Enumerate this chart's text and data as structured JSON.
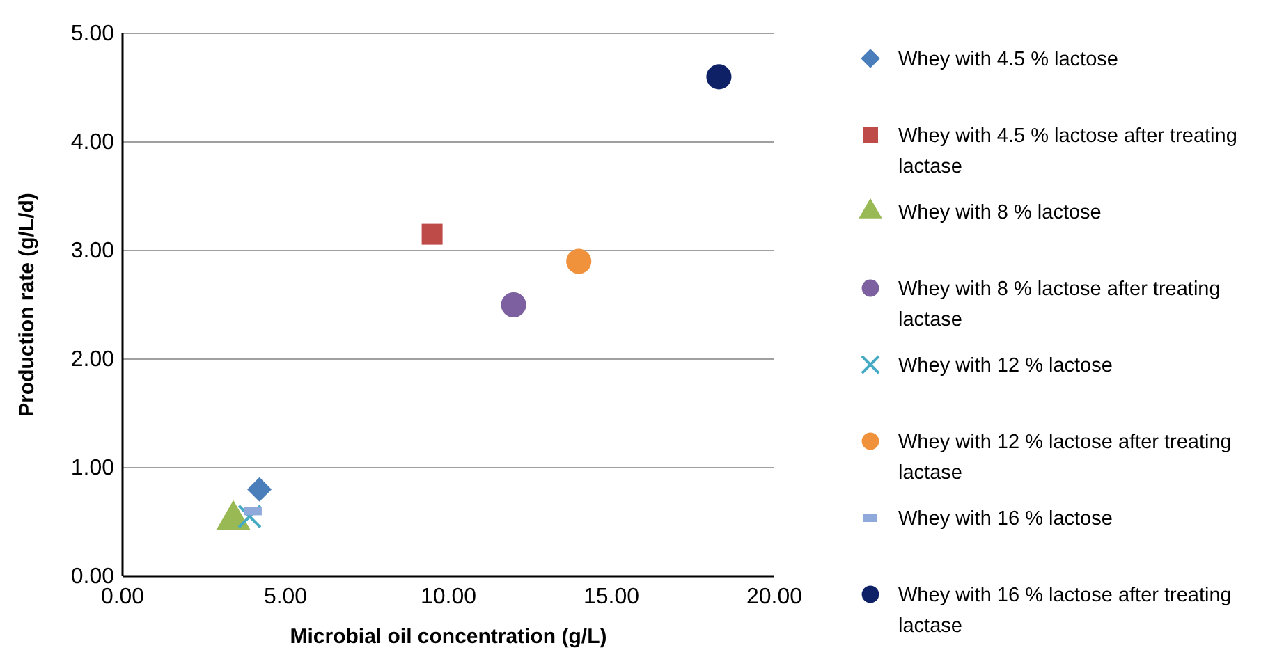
{
  "chart_data": {
    "type": "scatter",
    "xlabel": "Microbial oil concentration (g/L)",
    "ylabel": "Production rate (g/L/d)",
    "xlim": [
      0,
      20
    ],
    "xticks": [
      {
        "value": 0,
        "label": "0.00"
      },
      {
        "value": 5,
        "label": "5.00"
      },
      {
        "value": 10,
        "label": "10.00"
      },
      {
        "value": 15,
        "label": "15.00"
      },
      {
        "value": 20,
        "label": "20.00"
      }
    ],
    "ylim": [
      0,
      5
    ],
    "yticks": [
      {
        "value": 0,
        "label": "0.00"
      },
      {
        "value": 1,
        "label": "1.00"
      },
      {
        "value": 2,
        "label": "2.00"
      },
      {
        "value": 3,
        "label": "3.00"
      },
      {
        "value": 4,
        "label": "4.00"
      },
      {
        "value": 5,
        "label": "5.00"
      }
    ],
    "grid": "y",
    "legend": "right",
    "series": [
      {
        "name": "Whey with 4.5 % lactose",
        "color": "#4a7ebb",
        "marker": "diamond",
        "x": [
          4.2
        ],
        "values": [
          0.8
        ]
      },
      {
        "name": "Whey with 4.5 % lactose after treating lactase",
        "color": "#be4b48",
        "marker": "square",
        "x": [
          9.5
        ],
        "values": [
          3.15
        ]
      },
      {
        "name": "Whey with 8 % lactose",
        "color": "#98b954",
        "marker": "triangle",
        "x": [
          3.4
        ],
        "values": [
          0.52
        ]
      },
      {
        "name": "Whey with 8 % lactose after treating lactase",
        "color": "#7d60a0",
        "marker": "circle",
        "x": [
          12.0
        ],
        "values": [
          2.5
        ]
      },
      {
        "name": "Whey with 12 % lactose",
        "color": "#46aac5",
        "marker": "cross",
        "x": [
          3.9
        ],
        "values": [
          0.55
        ]
      },
      {
        "name": "Whey with 12 % lactose after treating lactase",
        "color": "#f0913c",
        "marker": "circle",
        "x": [
          14.0
        ],
        "values": [
          2.9
        ]
      },
      {
        "name": "Whey with 16 % lactose",
        "color": "#8fa9db",
        "x": [
          4.0
        ],
        "values": [
          0.6
        ]
      },
      {
        "name": "Whey with 16 % lactose after treating lactase",
        "color": "#0e2166",
        "marker": "circle",
        "x": [
          18.3
        ],
        "values": [
          4.6
        ]
      }
    ]
  }
}
